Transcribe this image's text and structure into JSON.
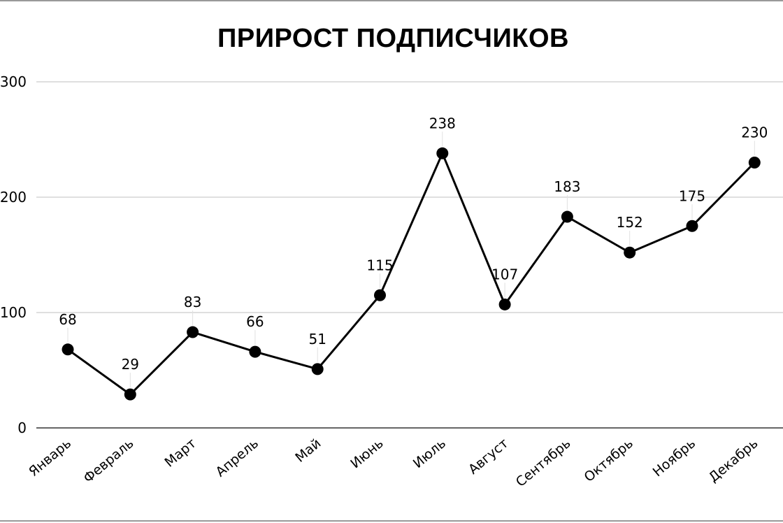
{
  "chart_data": {
    "type": "line",
    "title": "ПРИРОСТ ПОДПИСЧИКОВ",
    "xlabel": "",
    "ylabel": "",
    "categories": [
      "Январь",
      "Февраль",
      "Март",
      "Апрель",
      "Май",
      "Июнь",
      "Июль",
      "Август",
      "Сентябрь",
      "Октябрь",
      "Ноябрь",
      "Декабрь"
    ],
    "series": [
      {
        "values": [
          68,
          29,
          83,
          66,
          51,
          115,
          238,
          107,
          183,
          152,
          175,
          230
        ]
      }
    ],
    "ylim": [
      0,
      300
    ],
    "yticks": [
      0,
      100,
      200,
      300
    ],
    "grid": true,
    "legend": "none",
    "data_labels": true,
    "line_color": "#000000",
    "grid_color": "#cccccc"
  }
}
